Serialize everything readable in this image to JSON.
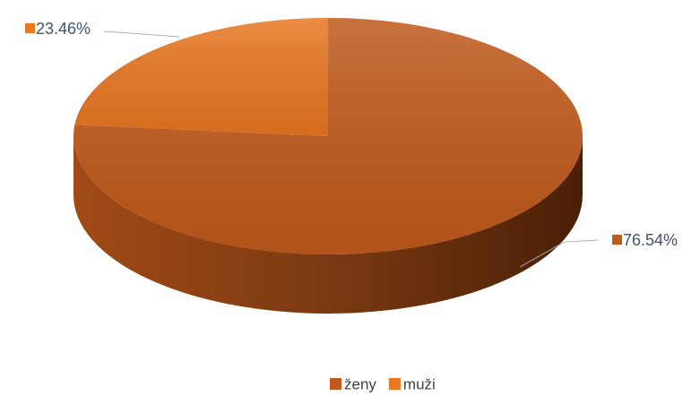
{
  "chart_data": {
    "type": "pie3d",
    "categories": [
      "ženy",
      "muži"
    ],
    "values": [
      76.54,
      23.46
    ],
    "value_labels": [
      "76.54%",
      "23.46%"
    ],
    "colors": [
      "#c05a1c",
      "#e87722"
    ],
    "legend": "bottom"
  }
}
